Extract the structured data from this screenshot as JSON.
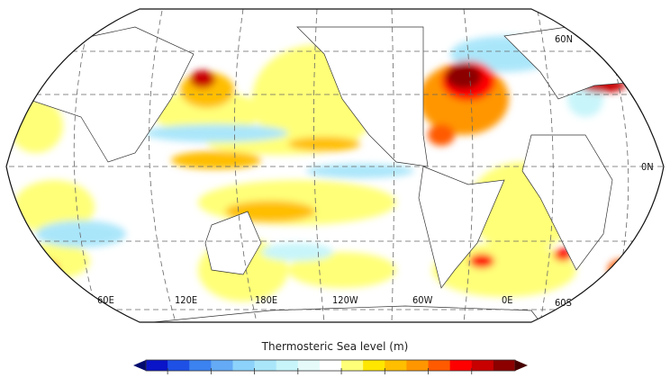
{
  "map": {
    "projection": "Robinson",
    "lat_labels": [
      "60N",
      "0N",
      "60S"
    ],
    "lon_labels": [
      "60E",
      "120E",
      "180E",
      "120W",
      "60W",
      "0E"
    ]
  },
  "colorbar": {
    "title": "Thermosteric Sea level (m)",
    "colors": [
      "#0a14c8",
      "#1e50e6",
      "#3c82f0",
      "#64aaf5",
      "#8cd2fa",
      "#aae6fa",
      "#c8f5fa",
      "#e6fafa",
      "#ffffff",
      "#ffff78",
      "#ffe600",
      "#ffbe00",
      "#ff9600",
      "#ff5a00",
      "#ff0000",
      "#c80000",
      "#8c0000"
    ],
    "under_color": "#000a6e",
    "over_color": "#460000"
  }
}
